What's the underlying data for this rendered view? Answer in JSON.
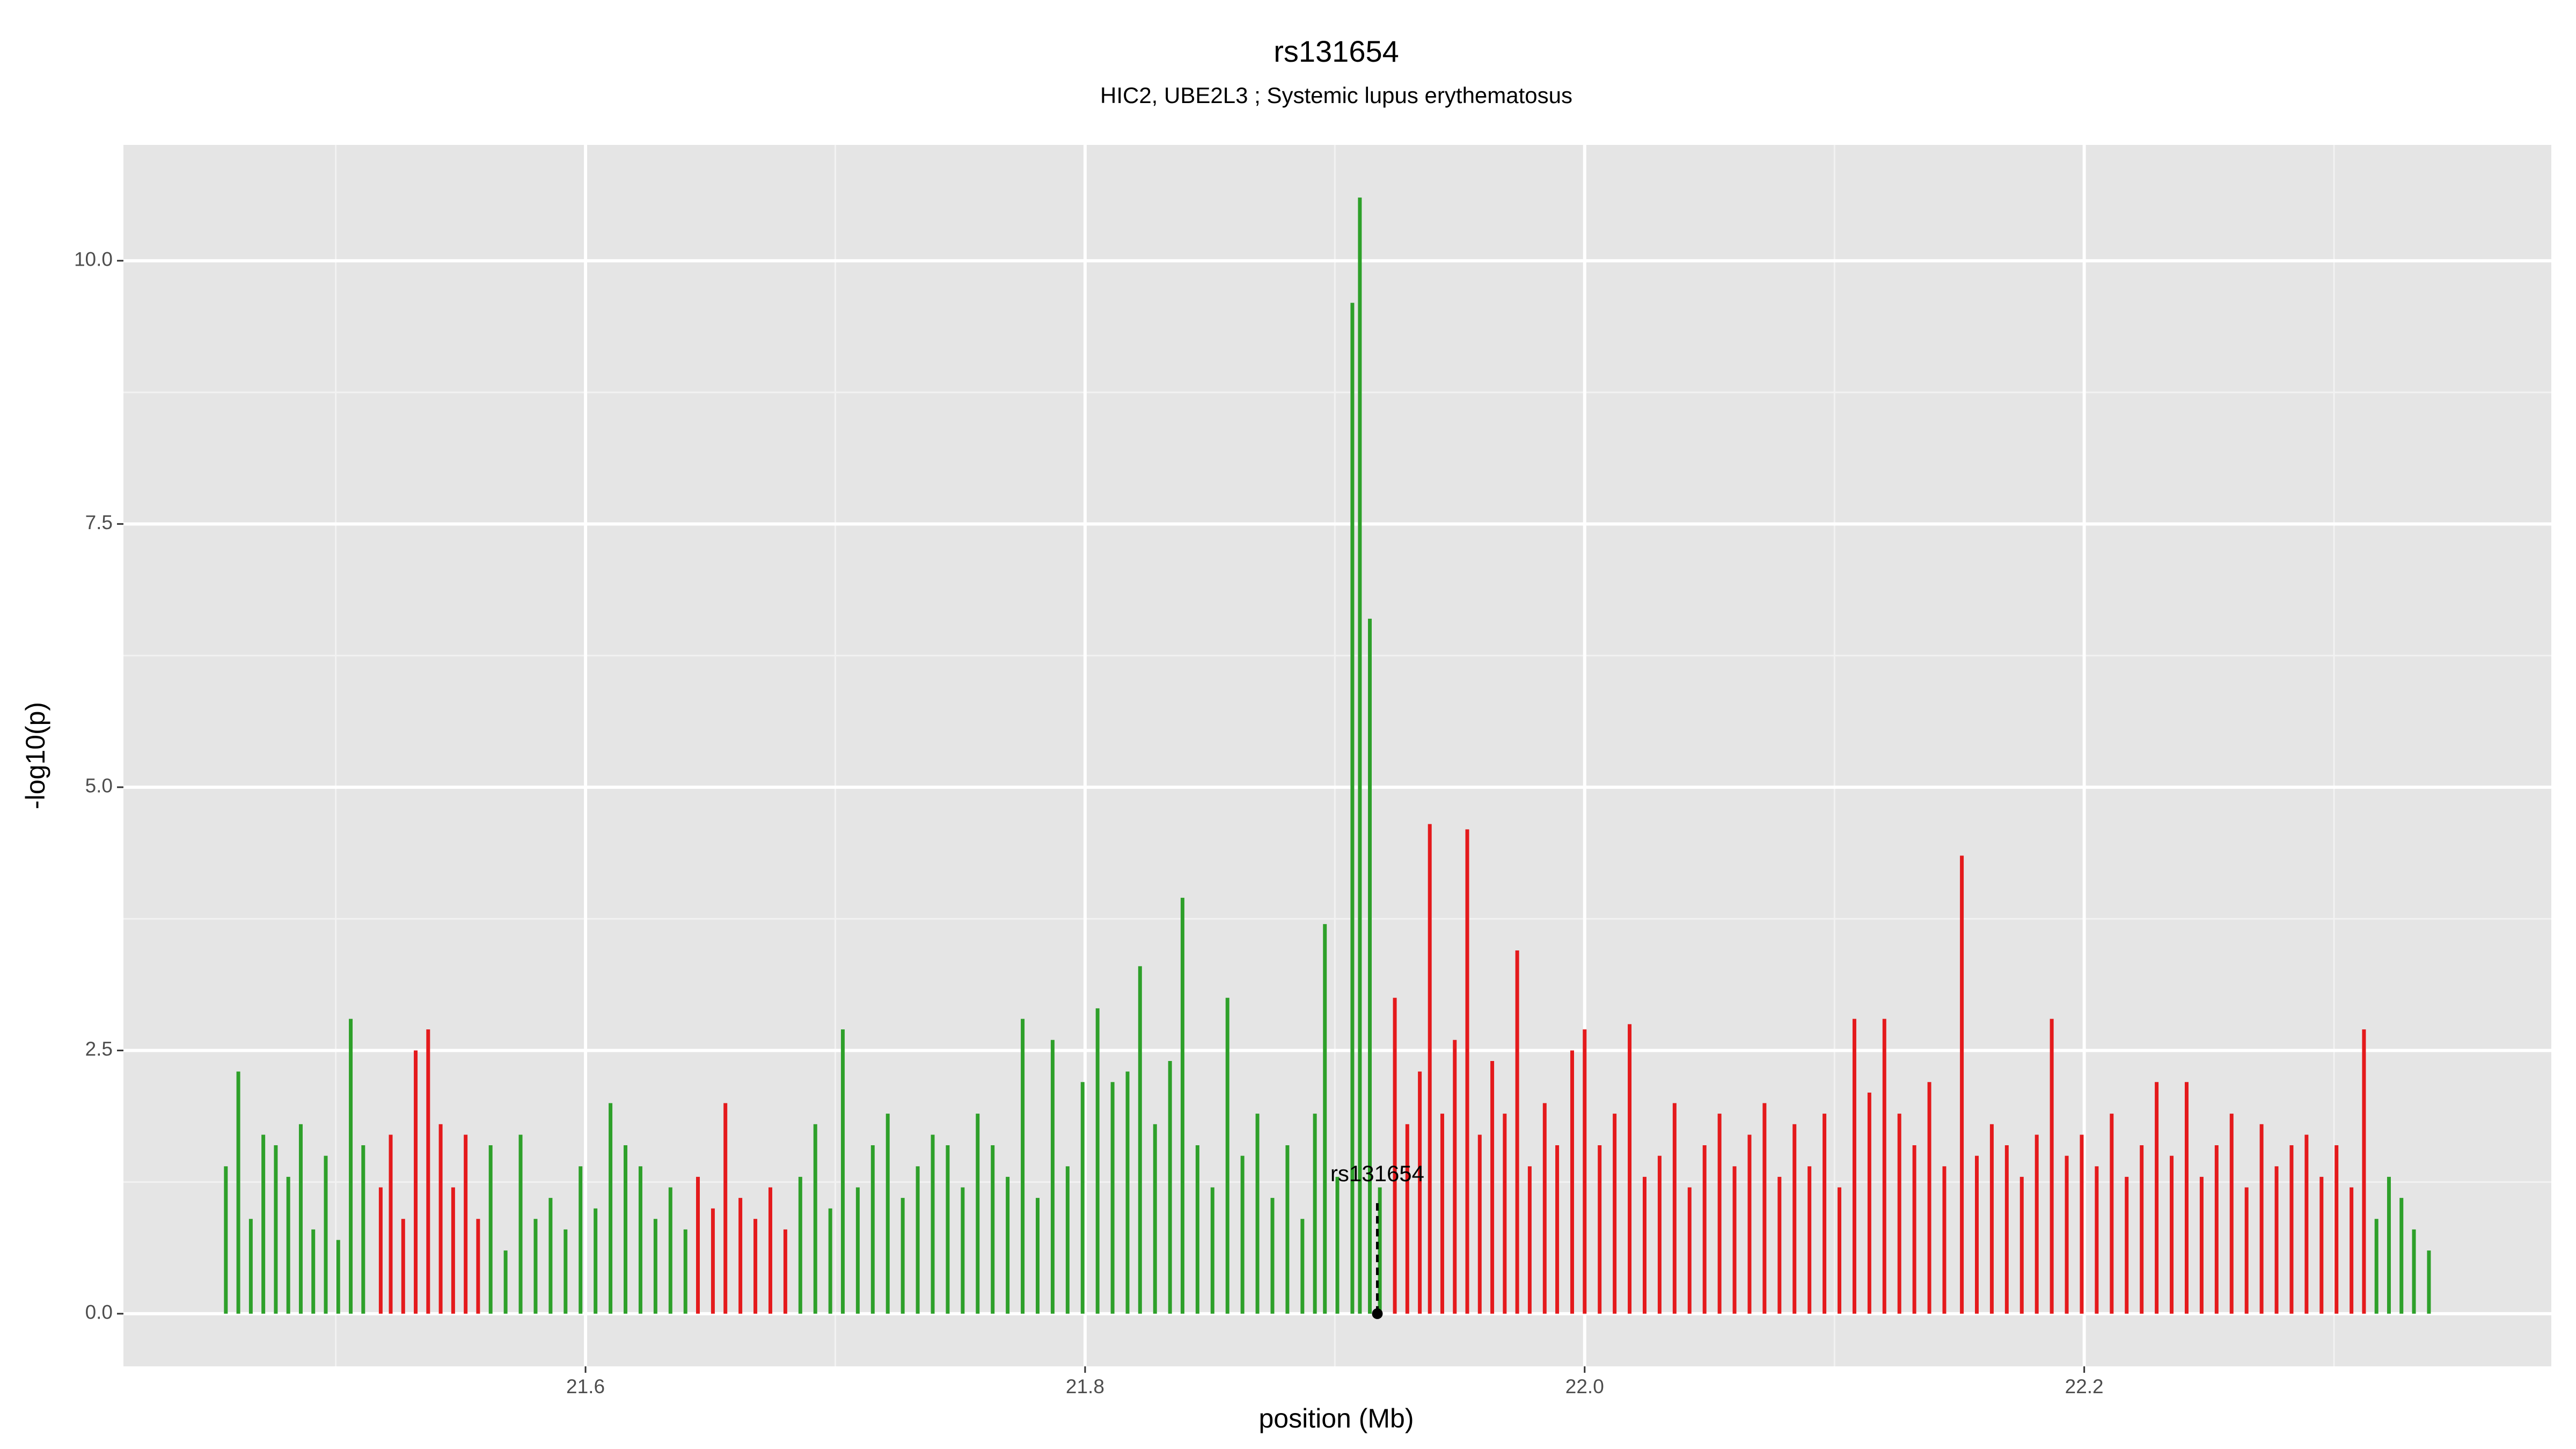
{
  "chart_data": {
    "type": "spike",
    "title": "rs131654",
    "subtitle": "HIC2, UBE2L3 ; Systemic lupus erythematosus",
    "xlabel": "position (Mb)",
    "ylabel": "-log10(p)",
    "xlim": [
      21.415,
      22.387
    ],
    "ylim": [
      -0.5,
      11.1
    ],
    "xticks": [
      21.6,
      21.8,
      {
        "value": 22.0,
        "label": "22.0"
      },
      22.2
    ],
    "yticks": [
      {
        "value": 0,
        "label": "0.0"
      },
      2.5,
      {
        "value": 5,
        "label": "5.0"
      },
      7.5,
      {
        "value": 10,
        "label": "10.0"
      }
    ],
    "xminor": [
      21.5,
      21.7,
      21.9,
      22.1,
      22.3
    ],
    "yminor": [
      1.25,
      3.75,
      6.25,
      8.75
    ],
    "grid": true,
    "series": [
      {
        "color": "#2ea02a",
        "x": [
          21.456,
          21.461,
          21.466,
          21.471,
          21.476,
          21.481,
          21.486,
          21.491,
          21.496,
          21.501,
          21.506,
          21.511
        ],
        "values": [
          1.4,
          2.3,
          0.9,
          1.7,
          1.6,
          1.3,
          1.8,
          0.8,
          1.5,
          0.7,
          2.8,
          1.6
        ]
      },
      {
        "color": "#e41a1c",
        "x": [
          21.518,
          21.522,
          21.527,
          21.532,
          21.537,
          21.542,
          21.547,
          21.552,
          21.557
        ],
        "values": [
          1.2,
          1.7,
          0.9,
          2.5,
          2.7,
          1.8,
          1.2,
          1.7,
          0.9
        ]
      },
      {
        "color": "#2ea02a",
        "x": [
          21.562,
          21.568,
          21.574,
          21.58,
          21.586,
          21.592,
          21.598,
          21.604,
          21.61,
          21.616,
          21.622,
          21.628,
          21.634,
          21.64
        ],
        "values": [
          1.6,
          0.6,
          1.7,
          0.9,
          1.1,
          0.8,
          1.4,
          1.0,
          2.0,
          1.6,
          1.4,
          0.9,
          1.2,
          0.8
        ]
      },
      {
        "color": "#e41a1c",
        "x": [
          21.645,
          21.651,
          21.656,
          21.662,
          21.668,
          21.674,
          21.68
        ],
        "values": [
          1.3,
          1.0,
          2.0,
          1.1,
          0.9,
          1.2,
          0.8
        ]
      },
      {
        "color": "#2ea02a",
        "x": [
          21.686,
          21.692,
          21.698,
          21.703,
          21.709,
          21.715,
          21.721,
          21.727,
          21.733,
          21.739,
          21.745,
          21.751,
          21.757,
          21.763,
          21.769,
          21.775,
          21.781,
          21.787,
          21.793,
          21.799,
          21.805,
          21.811,
          21.817,
          21.822,
          21.828,
          21.834,
          21.839,
          21.845,
          21.851,
          21.857,
          21.863,
          21.869,
          21.875,
          21.881,
          21.887,
          21.892,
          21.896,
          21.901,
          21.907,
          21.91,
          21.914,
          21.918
        ],
        "values": [
          1.3,
          1.8,
          1.0,
          2.7,
          1.2,
          1.6,
          1.9,
          1.1,
          1.4,
          1.7,
          1.6,
          1.2,
          1.9,
          1.6,
          1.3,
          2.8,
          1.1,
          2.6,
          1.4,
          2.2,
          2.9,
          2.2,
          2.3,
          3.3,
          1.8,
          2.4,
          3.95,
          1.6,
          1.2,
          3.0,
          1.5,
          1.9,
          1.1,
          1.6,
          0.9,
          1.9,
          3.7,
          1.3,
          9.6,
          10.6,
          6.6,
          1.2
        ]
      },
      {
        "color": "#e41a1c",
        "x": [
          21.924,
          21.929,
          21.934,
          21.938,
          21.943,
          21.948,
          21.953,
          21.958,
          21.963,
          21.968,
          21.973,
          21.978,
          21.984,
          21.989,
          21.995,
          22.0,
          22.006,
          22.012,
          22.018,
          22.024,
          22.03,
          22.036,
          22.042,
          22.048,
          22.054,
          22.06,
          22.066,
          22.072,
          22.078,
          22.084,
          22.09,
          22.096,
          22.102,
          22.108,
          22.114,
          22.12,
          22.126,
          22.132,
          22.138,
          22.144,
          22.151,
          22.157,
          22.163,
          22.169,
          22.175,
          22.181,
          22.187,
          22.193,
          22.199,
          22.205,
          22.211,
          22.217,
          22.223,
          22.229,
          22.235,
          22.241,
          22.247,
          22.253,
          22.259,
          22.265,
          22.271,
          22.277,
          22.283,
          22.289,
          22.295,
          22.301,
          22.307,
          22.312
        ],
        "values": [
          3.0,
          1.8,
          2.3,
          4.65,
          1.9,
          2.6,
          4.6,
          1.7,
          2.4,
          1.9,
          3.45,
          1.4,
          2.0,
          1.6,
          2.5,
          2.7,
          1.6,
          1.9,
          2.75,
          1.3,
          1.5,
          2.0,
          1.2,
          1.6,
          1.9,
          1.4,
          1.7,
          2.0,
          1.3,
          1.8,
          1.4,
          1.9,
          1.2,
          2.8,
          2.1,
          2.8,
          1.9,
          1.6,
          2.2,
          1.4,
          4.35,
          1.5,
          1.8,
          1.6,
          1.3,
          1.7,
          2.8,
          1.5,
          1.7,
          1.4,
          1.9,
          1.3,
          1.6,
          2.2,
          1.5,
          2.2,
          1.3,
          1.6,
          1.9,
          1.2,
          1.8,
          1.4,
          1.6,
          1.7,
          1.3,
          1.6,
          1.2,
          2.7
        ]
      },
      {
        "color": "#2ea02a",
        "x": [
          22.317,
          22.322,
          22.327,
          22.332,
          22.338
        ],
        "values": [
          0.9,
          1.3,
          1.1,
          0.8,
          0.6
        ]
      }
    ],
    "annotation": {
      "text": "rs131654",
      "x": 21.917,
      "y": 0
    }
  }
}
